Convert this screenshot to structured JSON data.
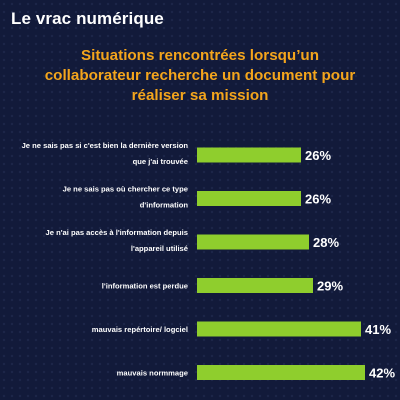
{
  "header": {
    "brand": "Le vrac numérique"
  },
  "colors": {
    "background": "#121a3a",
    "accent": "#f4a51c",
    "bar": "#8fce2d",
    "text": "#ffffff"
  },
  "chart_data": {
    "type": "bar",
    "orientation": "horizontal",
    "title_lines": [
      "Situations rencontrées lorsqu’un",
      "collaborateur recherche un document pour",
      "réaliser sa mission"
    ],
    "categories": [
      [
        "Je ne sais pas si c'est bien la dernière version",
        "que j'ai trouvée"
      ],
      [
        "Je ne sais pas où chercher ce type",
        "d'information"
      ],
      [
        "Je n'ai pas accès à l'information depuis",
        "l'appareil utilisé"
      ],
      [
        "l'information est perdue"
      ],
      [
        "mauvais repértoire/ logciel"
      ],
      [
        "mauvais normmage"
      ]
    ],
    "values": [
      26,
      26,
      28,
      29,
      41,
      42
    ],
    "value_labels": [
      "26%",
      "26%",
      "28%",
      "29%",
      "41%",
      "42%"
    ],
    "unit": "%",
    "xlim": [
      0,
      42
    ],
    "grid": false,
    "legend": "none"
  }
}
